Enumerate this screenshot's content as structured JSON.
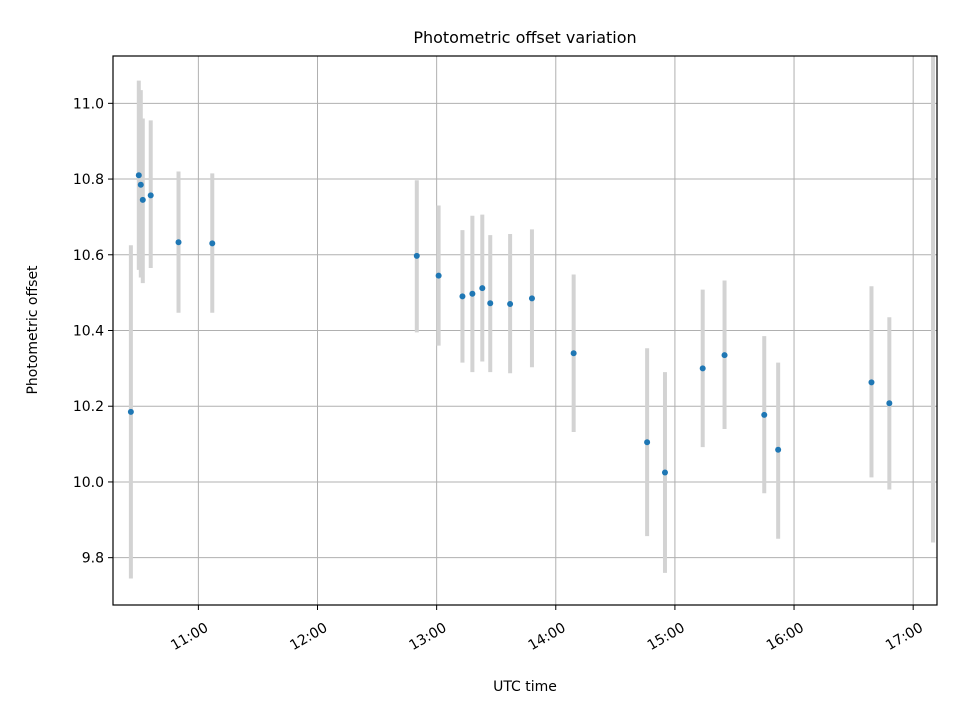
{
  "chart_data": {
    "type": "scatter",
    "title": "Photometric offset variation",
    "xlabel": "UTC time",
    "ylabel": "Photometric offset",
    "xlim": [
      "10:17",
      "17:12"
    ],
    "ylim": [
      9.675,
      11.125
    ],
    "x_ticks": [
      "11:00",
      "12:00",
      "13:00",
      "14:00",
      "15:00",
      "16:00",
      "17:00"
    ],
    "y_ticks": [
      9.8,
      10.0,
      10.2,
      10.4,
      10.6,
      10.8,
      11.0
    ],
    "grid": true,
    "marker_color": "#1f77b4",
    "errorbar_color": "#d3d3d3",
    "points": [
      {
        "x": "10:26",
        "y": 10.185,
        "ylow": 9.745,
        "yhigh": 10.625
      },
      {
        "x": "10:30",
        "y": 10.81,
        "ylow": 10.56,
        "yhigh": 11.06
      },
      {
        "x": "10:31",
        "y": 10.785,
        "ylow": 10.54,
        "yhigh": 11.035
      },
      {
        "x": "10:32",
        "y": 10.745,
        "ylow": 10.525,
        "yhigh": 10.96
      },
      {
        "x": "10:36",
        "y": 10.757,
        "ylow": 10.565,
        "yhigh": 10.955
      },
      {
        "x": "10:50",
        "y": 10.633,
        "ylow": 10.447,
        "yhigh": 10.82
      },
      {
        "x": "11:07",
        "y": 10.63,
        "ylow": 10.447,
        "yhigh": 10.815
      },
      {
        "x": "12:50",
        "y": 10.597,
        "ylow": 10.395,
        "yhigh": 10.797
      },
      {
        "x": "13:01",
        "y": 10.545,
        "ylow": 10.36,
        "yhigh": 10.73
      },
      {
        "x": "13:13",
        "y": 10.49,
        "ylow": 10.315,
        "yhigh": 10.665
      },
      {
        "x": "13:18",
        "y": 10.497,
        "ylow": 10.29,
        "yhigh": 10.703
      },
      {
        "x": "13:23",
        "y": 10.512,
        "ylow": 10.318,
        "yhigh": 10.706
      },
      {
        "x": "13:27",
        "y": 10.472,
        "ylow": 10.29,
        "yhigh": 10.652
      },
      {
        "x": "13:37",
        "y": 10.47,
        "ylow": 10.287,
        "yhigh": 10.655
      },
      {
        "x": "13:48",
        "y": 10.485,
        "ylow": 10.303,
        "yhigh": 10.667
      },
      {
        "x": "14:09",
        "y": 10.34,
        "ylow": 10.132,
        "yhigh": 10.548
      },
      {
        "x": "14:46",
        "y": 10.105,
        "ylow": 9.857,
        "yhigh": 10.353
      },
      {
        "x": "14:55",
        "y": 10.025,
        "ylow": 9.76,
        "yhigh": 10.29
      },
      {
        "x": "15:14",
        "y": 10.3,
        "ylow": 10.092,
        "yhigh": 10.508
      },
      {
        "x": "15:25",
        "y": 10.335,
        "ylow": 10.14,
        "yhigh": 10.532
      },
      {
        "x": "15:45",
        "y": 10.177,
        "ylow": 9.97,
        "yhigh": 10.385
      },
      {
        "x": "15:52",
        "y": 10.085,
        "ylow": 9.85,
        "yhigh": 10.315
      },
      {
        "x": "16:39",
        "y": 10.263,
        "ylow": 10.012,
        "yhigh": 10.517
      },
      {
        "x": "16:48",
        "y": 10.208,
        "ylow": 9.98,
        "yhigh": 10.435
      },
      {
        "x": "17:10",
        "y": null,
        "ylow": 9.84,
        "yhigh": 11.125
      }
    ]
  }
}
